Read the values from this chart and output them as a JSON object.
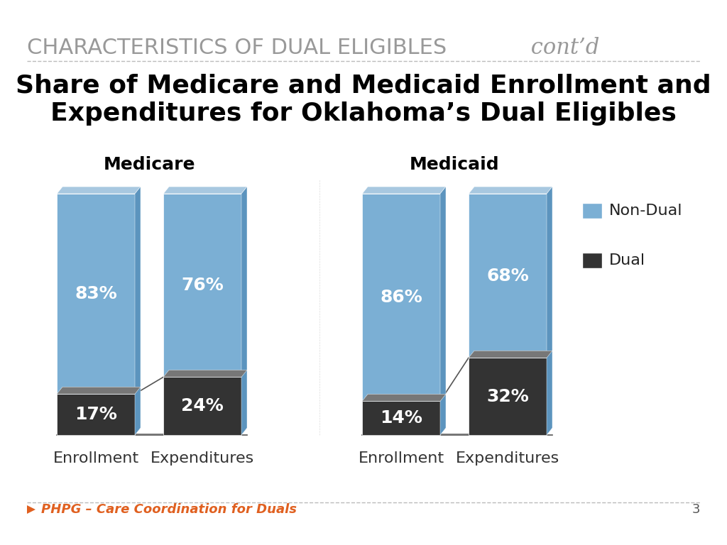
{
  "title_main": "CHARACTERISTICS OF DUAL ELIGIBLES",
  "title_italic": " cont’d",
  "subtitle": "Share of Medicare and Medicaid Enrollment and\nExpenditures for Oklahoma’s Dual Eligibles",
  "group_labels": [
    "Medicare",
    "Medicaid"
  ],
  "bar_labels": [
    "Enrollment",
    "Expenditures"
  ],
  "dual_values": [
    17,
    24,
    14,
    32
  ],
  "nondual_values": [
    83,
    76,
    86,
    68
  ],
  "dual_labels": [
    "17%",
    "24%",
    "14%",
    "32%"
  ],
  "nondual_labels": [
    "83%",
    "76%",
    "86%",
    "68%"
  ],
  "color_nondual": "#7BAFD4",
  "color_dual": "#333333",
  "color_nondual_legend": "#7BAFD4",
  "color_dual_legend": "#444444",
  "bar_width": 0.55,
  "footer_text": "PHPG – Care Coordination for Duals",
  "footer_page": "3",
  "background_color": "#FFFFFF",
  "title_color": "#888888",
  "subtitle_color": "#000000",
  "group_label_color": "#000000",
  "bar_text_color": "#FFFFFF",
  "legend_labels": [
    "Non-Dual",
    "Dual"
  ]
}
